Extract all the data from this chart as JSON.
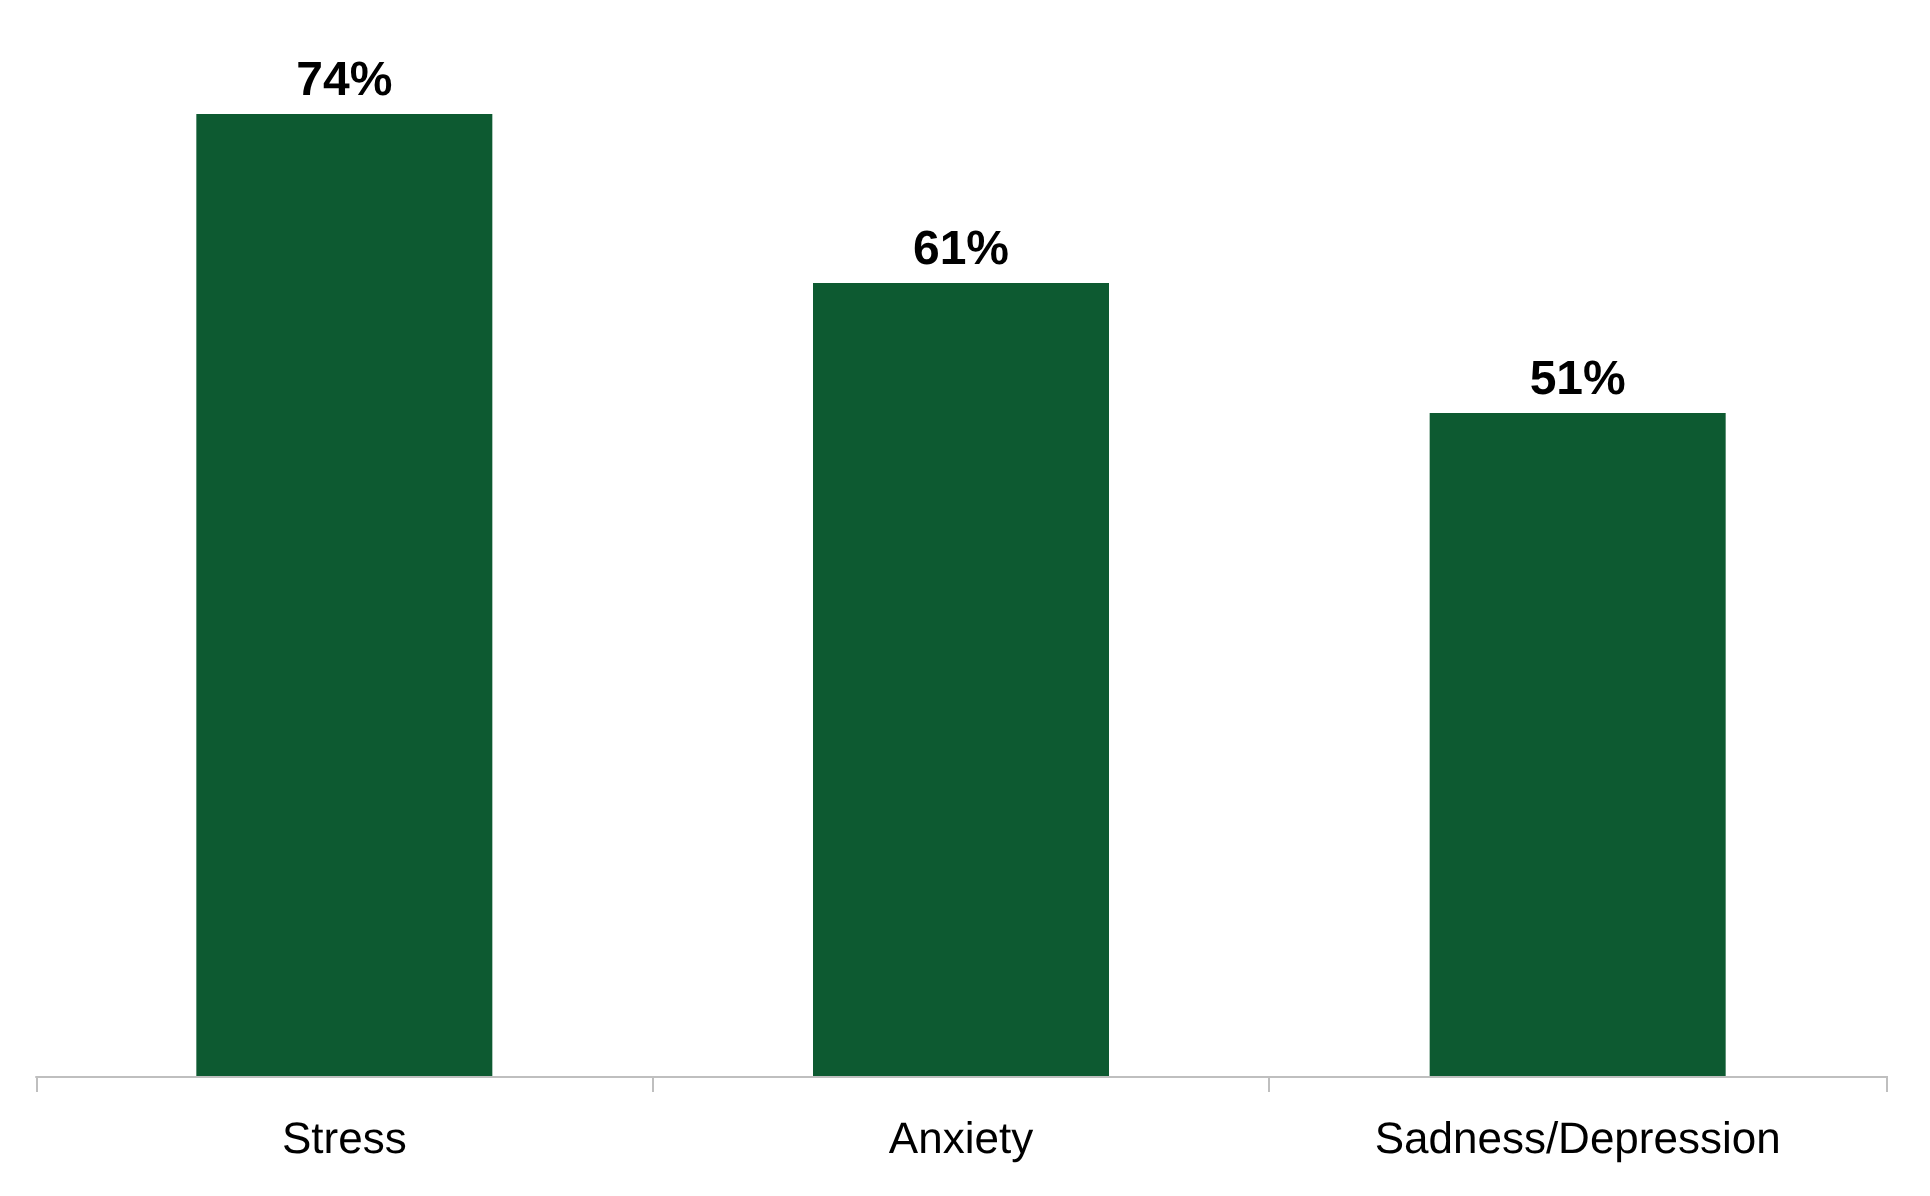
{
  "chart_data": {
    "type": "bar",
    "categories": [
      "Stress",
      "Anxiety",
      "Sadness/Depression"
    ],
    "values": [
      74,
      61,
      51
    ],
    "color": "#0d5a31",
    "value_labels": [
      "74%",
      "61%",
      "51%"
    ]
  }
}
